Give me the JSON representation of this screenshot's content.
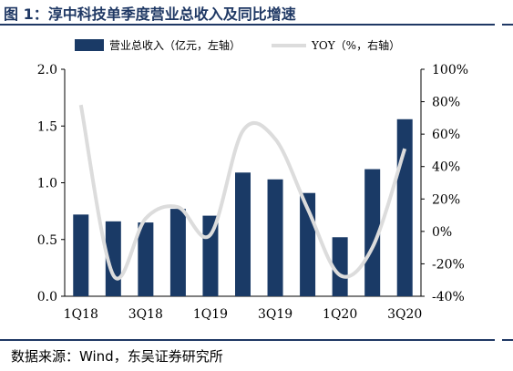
{
  "figure": {
    "title": "图 1：淳中科技单季度营业总收入及同比增速",
    "source": "数据来源：Wind，东吴证券研究所"
  },
  "colors": {
    "bar": "#1a3a66",
    "line": "#dcdcdc",
    "title": "#1f3864"
  },
  "chart_data": {
    "type": "bar",
    "categories": [
      "1Q18",
      "2Q18",
      "3Q18",
      "4Q18",
      "1Q19",
      "2Q19",
      "3Q19",
      "4Q19",
      "1Q20",
      "2Q20",
      "3Q20"
    ],
    "x_tick_labels": [
      "1Q18",
      "",
      "3Q18",
      "",
      "1Q19",
      "",
      "3Q19",
      "",
      "1Q20",
      "",
      "3Q20"
    ],
    "series": [
      {
        "name": "营业总收入（亿元，左轴）",
        "type": "bar",
        "axis": "left",
        "values": [
          0.72,
          0.66,
          0.65,
          0.77,
          0.71,
          1.09,
          1.03,
          0.91,
          0.52,
          1.12,
          1.56
        ]
      },
      {
        "name": "YOY（%，右轴）",
        "type": "line",
        "axis": "right",
        "smooth": true,
        "values": [
          78,
          -27,
          8,
          15,
          -2,
          62,
          57,
          14,
          -27,
          -10,
          51
        ]
      }
    ],
    "left_axis": {
      "range": [
        0,
        2.0
      ],
      "ticks": [
        "0.0",
        "0.5",
        "1.0",
        "1.5",
        "2.0"
      ]
    },
    "right_axis": {
      "range": [
        -40,
        100
      ],
      "ticks": [
        "-40%",
        "-20%",
        "0%",
        "20%",
        "40%",
        "60%",
        "80%",
        "100%"
      ]
    },
    "legend_position": "top",
    "grid": false
  }
}
